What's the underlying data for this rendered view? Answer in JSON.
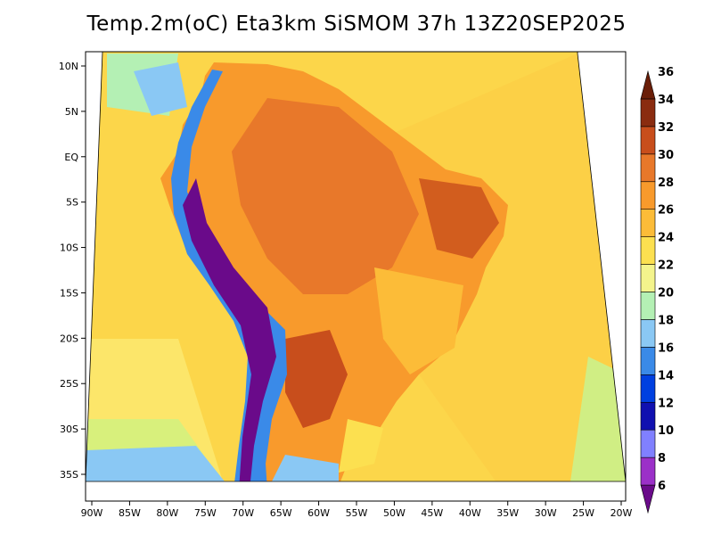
{
  "title": "Temp.2m(oC) Eta3km SiSMOM 37h 13Z20SEP2025",
  "map": {
    "projection": "regional lat-lon (South America / Brazil)",
    "lon_range": [
      -90,
      -20
    ],
    "lat_range": [
      -38,
      12
    ],
    "lon_labels": [
      "90W",
      "85W",
      "80W",
      "75W",
      "70W",
      "65W",
      "60W",
      "55W",
      "50W",
      "45W",
      "40W",
      "35W",
      "30W",
      "25W",
      "20W"
    ],
    "lat_labels": [
      "10N",
      "5N",
      "EQ",
      "5S",
      "10S",
      "15S",
      "20S",
      "25S",
      "30S",
      "35S"
    ],
    "lat_values": [
      10,
      5,
      0,
      -5,
      -10,
      -15,
      -20,
      -25,
      -30,
      -35
    ]
  },
  "colorbar": {
    "levels": [
      "6",
      "8",
      "10",
      "12",
      "14",
      "16",
      "18",
      "20",
      "22",
      "24",
      "26",
      "28",
      "30",
      "32",
      "34",
      "36"
    ],
    "colors": [
      "#6a0a8a",
      "#9b30c8",
      "#8080ff",
      "#1010b0",
      "#0040e0",
      "#3a8ae8",
      "#8ac8f4",
      "#b4f0b4",
      "#f4f48c",
      "#fce050",
      "#fcbc38",
      "#f89a2c",
      "#e8782a",
      "#c84e1c",
      "#8a2c10",
      "#6a1e08"
    ],
    "range": [
      6,
      36
    ]
  }
}
